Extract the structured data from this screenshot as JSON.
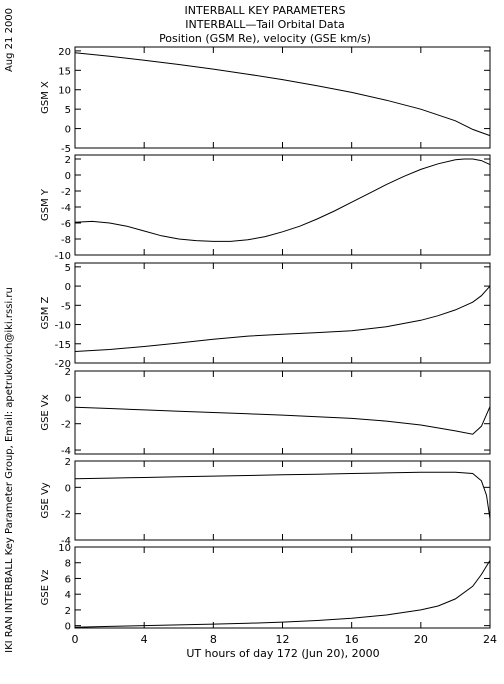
{
  "header": {
    "title_line1": "INTERBALL KEY PARAMETERS",
    "title_line2": "INTERBALL—Tail Orbital Data",
    "title_line3": "Position (GSM Re), velocity (GSE km/s)"
  },
  "side_labels": {
    "date": "Aug 21 2000",
    "credit": "IKI RAN INTERBALL Key Parameter Group, Email: apetrukovich@iki.rssi.ru"
  },
  "x_axis": {
    "label": "UT hours of day 172 (Jun 20), 2000",
    "range": [
      0,
      24
    ],
    "ticks": [
      0,
      4,
      8,
      12,
      16,
      20,
      24
    ]
  },
  "chart_data": [
    {
      "type": "line",
      "ylabel": "GSM X",
      "xlim": [
        0,
        24
      ],
      "ylim": [
        -5,
        21
      ],
      "yticks": [
        20,
        15,
        10,
        5,
        0,
        -5
      ],
      "series": [
        {
          "x": [
            0,
            2,
            4,
            6,
            8,
            10,
            12,
            14,
            16,
            18,
            20,
            22,
            23,
            24
          ],
          "values": [
            19.5,
            18.6,
            17.6,
            16.5,
            15.3,
            14.0,
            12.6,
            11.0,
            9.3,
            7.3,
            5.0,
            2.0,
            -0.2,
            -1.8
          ]
        }
      ]
    },
    {
      "type": "line",
      "ylabel": "GSM Y",
      "xlim": [
        0,
        24
      ],
      "ylim": [
        -10,
        2.5
      ],
      "yticks": [
        2,
        0,
        -2,
        -4,
        -6,
        -8,
        -10
      ],
      "series": [
        {
          "x": [
            0,
            1,
            2,
            3,
            4,
            5,
            6,
            7,
            8,
            9,
            10,
            11,
            12,
            13,
            14,
            15,
            16,
            17,
            18,
            19,
            20,
            21,
            22,
            22.5,
            23,
            23.5,
            24
          ],
          "values": [
            -5.9,
            -5.8,
            -6.0,
            -6.4,
            -7.0,
            -7.6,
            -8.0,
            -8.2,
            -8.3,
            -8.3,
            -8.1,
            -7.7,
            -7.1,
            -6.4,
            -5.5,
            -4.5,
            -3.4,
            -2.3,
            -1.2,
            -0.2,
            0.7,
            1.4,
            1.9,
            2.0,
            2.0,
            1.8,
            1.3
          ]
        }
      ]
    },
    {
      "type": "line",
      "ylabel": "GSM Z",
      "xlim": [
        0,
        24
      ],
      "ylim": [
        -20,
        6
      ],
      "yticks": [
        5,
        0,
        -5,
        -10,
        -15,
        -20
      ],
      "series": [
        {
          "x": [
            0,
            2,
            4,
            6,
            8,
            10,
            12,
            14,
            16,
            18,
            20,
            21,
            22,
            23,
            23.5,
            24
          ],
          "values": [
            -17.0,
            -16.5,
            -15.7,
            -14.8,
            -13.8,
            -13.0,
            -12.5,
            -12.1,
            -11.6,
            -10.6,
            -8.9,
            -7.7,
            -6.2,
            -4.2,
            -2.5,
            0.0
          ]
        }
      ]
    },
    {
      "type": "line",
      "ylabel": "GSE Vx",
      "xlim": [
        0,
        24
      ],
      "ylim": [
        -4.3,
        2
      ],
      "yticks": [
        2,
        0,
        -2,
        -4
      ],
      "series": [
        {
          "x": [
            0,
            2,
            4,
            6,
            8,
            10,
            12,
            14,
            16,
            18,
            20,
            22,
            23,
            23.5,
            24
          ],
          "values": [
            -0.75,
            -0.85,
            -0.95,
            -1.05,
            -1.15,
            -1.25,
            -1.35,
            -1.47,
            -1.6,
            -1.8,
            -2.1,
            -2.55,
            -2.8,
            -2.2,
            -0.7
          ]
        }
      ]
    },
    {
      "type": "line",
      "ylabel": "GSE Vy",
      "xlim": [
        0,
        24
      ],
      "ylim": [
        -4,
        2
      ],
      "yticks": [
        2,
        0,
        -2,
        -4
      ],
      "series": [
        {
          "x": [
            0,
            2,
            4,
            6,
            8,
            10,
            12,
            14,
            16,
            18,
            20,
            22,
            23,
            23.5,
            23.8,
            24
          ],
          "values": [
            0.65,
            0.7,
            0.75,
            0.8,
            0.85,
            0.9,
            0.95,
            1.0,
            1.05,
            1.1,
            1.15,
            1.15,
            1.05,
            0.5,
            -0.6,
            -2.4
          ]
        }
      ]
    },
    {
      "type": "line",
      "ylabel": "GSE Vz",
      "xlim": [
        0,
        24
      ],
      "ylim": [
        -0.3,
        10
      ],
      "yticks": [
        10,
        8,
        6,
        4,
        2,
        0
      ],
      "series": [
        {
          "x": [
            0,
            2,
            4,
            6,
            8,
            10,
            12,
            14,
            16,
            18,
            20,
            21,
            22,
            23,
            23.5,
            24
          ],
          "values": [
            -0.2,
            -0.1,
            0.0,
            0.1,
            0.2,
            0.3,
            0.45,
            0.65,
            0.95,
            1.35,
            2.0,
            2.5,
            3.4,
            5.0,
            6.5,
            8.3
          ]
        }
      ]
    }
  ]
}
